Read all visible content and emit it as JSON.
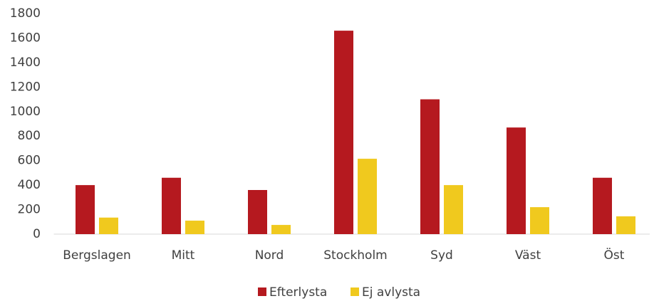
{
  "chart_data": {
    "type": "bar",
    "categories": [
      "Bergslagen",
      "Mitt",
      "Nord",
      "Stockholm",
      "Syd",
      "Väst",
      "Öst"
    ],
    "series": [
      {
        "name": "Efterlysta",
        "color": "#b5191f",
        "values": [
          400,
          460,
          360,
          1660,
          1100,
          870,
          460
        ]
      },
      {
        "name": "Ej avlysta",
        "color": "#f0c91e",
        "values": [
          135,
          110,
          75,
          615,
          400,
          220,
          145
        ]
      }
    ],
    "ylim": [
      0,
      1800
    ],
    "yticks": [
      0,
      200,
      400,
      600,
      800,
      1000,
      1200,
      1400,
      1600,
      1800
    ],
    "grid": false,
    "legend": "bottom"
  }
}
